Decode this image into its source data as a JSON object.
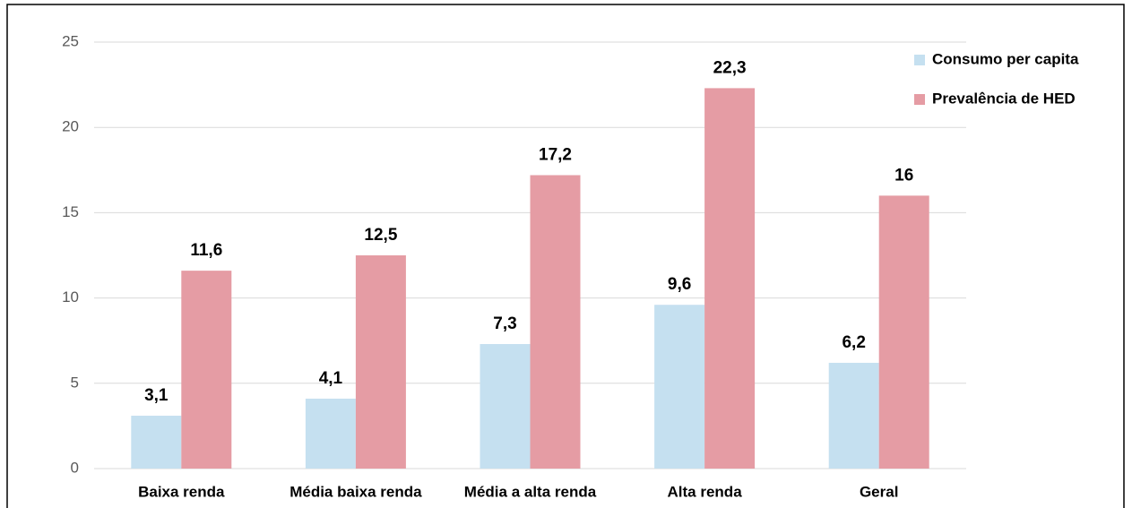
{
  "chart_data": {
    "type": "bar",
    "categories": [
      "Baixa renda",
      "Média baixa renda",
      "Média a alta renda",
      "Alta renda",
      "Geral"
    ],
    "series": [
      {
        "name": "Consumo per capita",
        "color": "#c5e0f0",
        "values": [
          3.1,
          4.1,
          7.3,
          9.6,
          6.2
        ],
        "value_labels": [
          "3,1",
          "4,1",
          "7,3",
          "9,6",
          "6,2"
        ]
      },
      {
        "name": "Prevalência de HED",
        "color": "#e59ca4",
        "values": [
          11.6,
          12.5,
          17.2,
          22.3,
          16
        ],
        "value_labels": [
          "11,6",
          "12,5",
          "17,2",
          "22,3",
          "16"
        ]
      }
    ],
    "ylim": [
      0,
      25
    ],
    "yticks": [
      0,
      5,
      10,
      15,
      20,
      25
    ],
    "grid": true,
    "legend": "top-right"
  }
}
